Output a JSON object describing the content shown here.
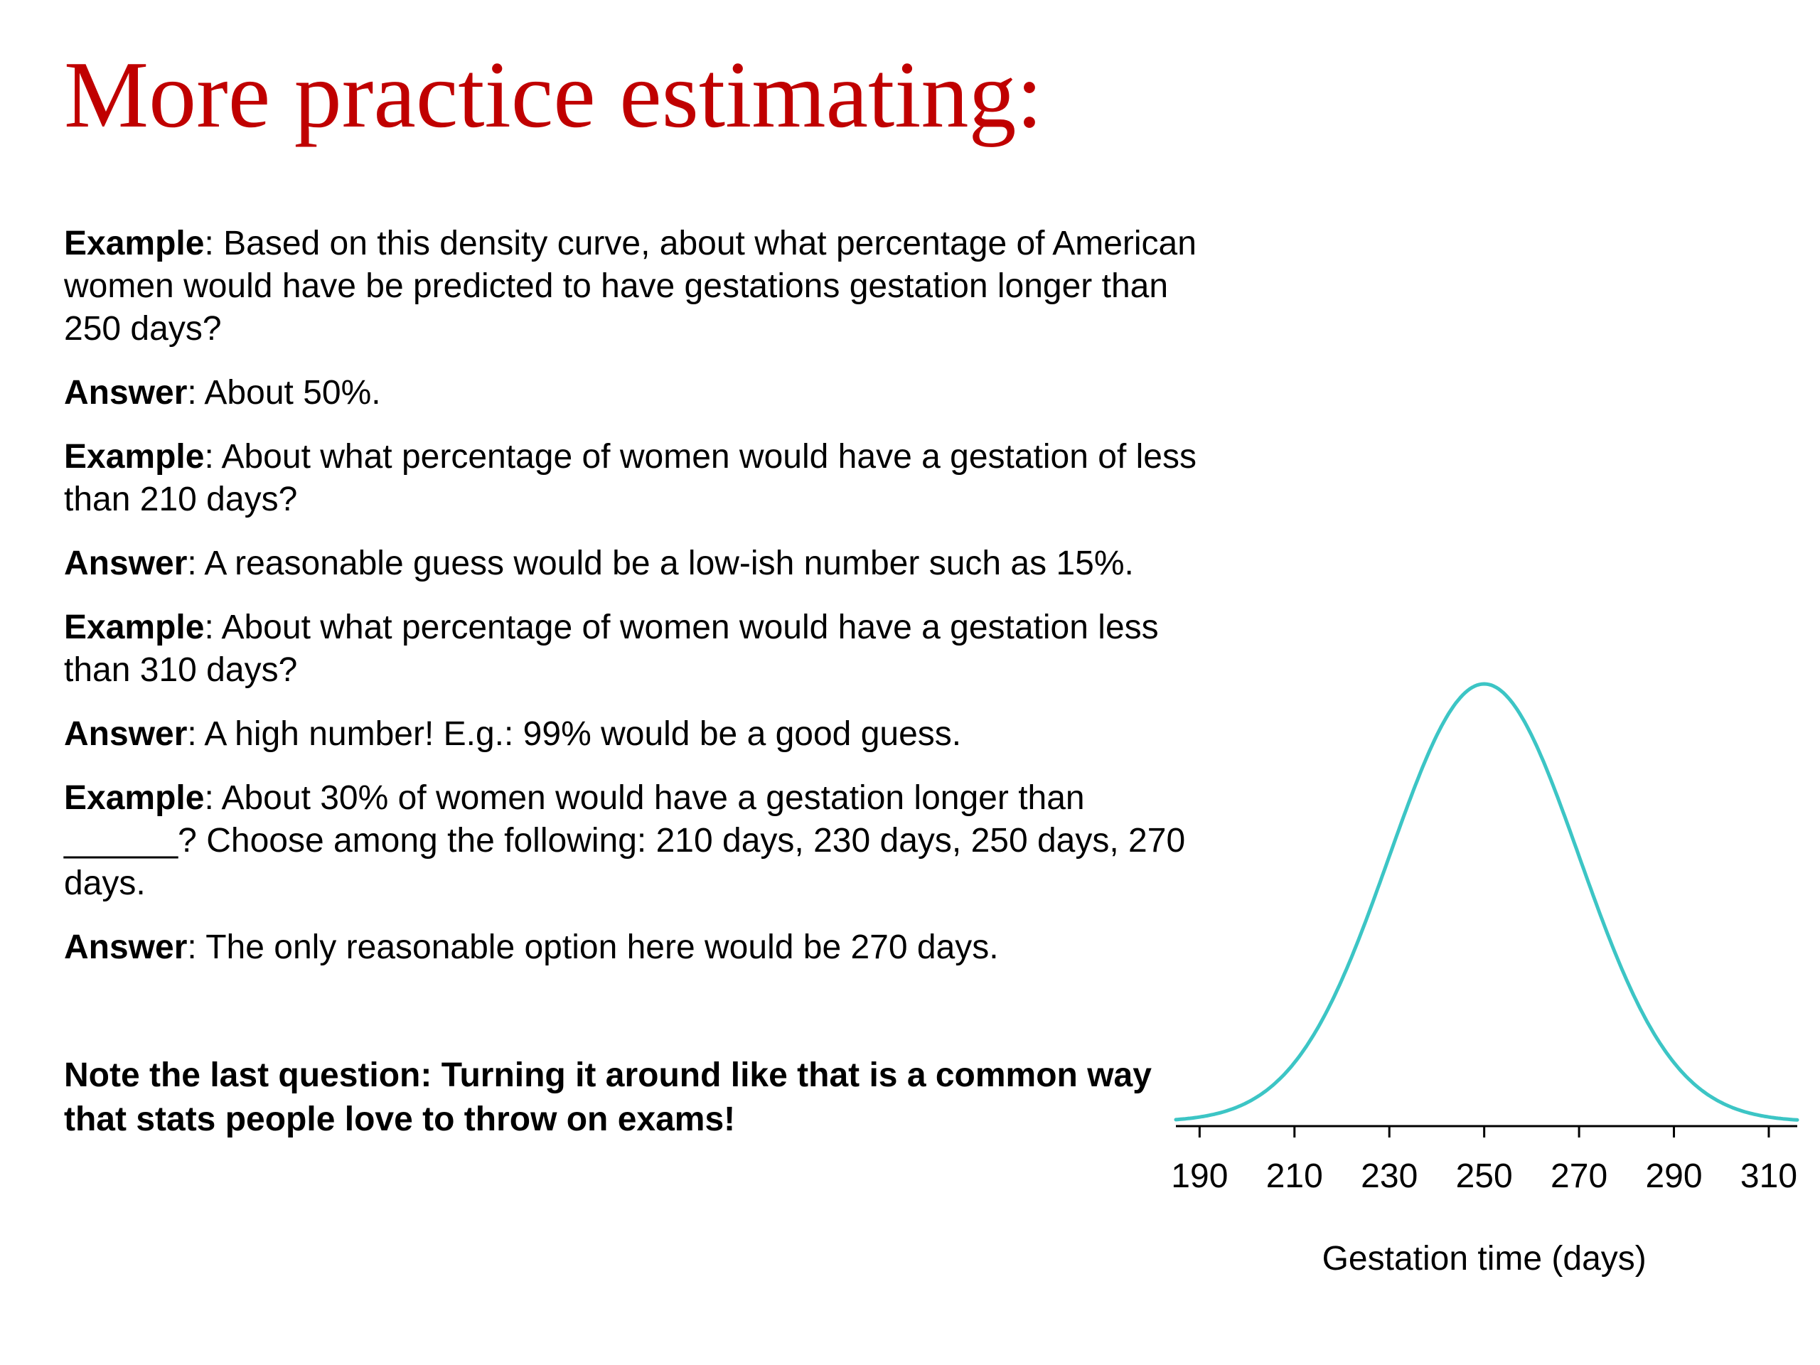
{
  "slide": {
    "title": "More practice estimating:",
    "title_color": "#c00000",
    "qa": [
      {
        "label": "Example",
        "text": ": Based on this density curve, about what percentage of American women would have be predicted to have gestations gestation longer than 250 days?"
      },
      {
        "label": "Answer",
        "text": ": About 50%."
      },
      {
        "label": "Example",
        "text": ": About what percentage of women would have a gestation of less than 210 days?"
      },
      {
        "label": "Answer",
        "text": ": A reasonable guess would be a low-ish number such as 15%."
      },
      {
        "label": "Example",
        "text": ": About what percentage of women would have a gestation less than 310 days?"
      },
      {
        "label": "Answer",
        "text": ": A high number!  E.g.: 99% would be a good guess."
      },
      {
        "label": "Example",
        "text": ": About 30% of women would have a gestation longer than ______?  Choose among the following: 210 days, 230 days, 250 days, 270 days."
      },
      {
        "label": "Answer",
        "text": ": The only reasonable option here would be 270 days."
      }
    ],
    "note": "Note the last question: Turning it around like that is a common way that stats people love to throw on exams!"
  },
  "chart_data": {
    "type": "line",
    "description": "normal density curve",
    "mean": 250,
    "sd": 20,
    "xlabel": "Gestation time (days)",
    "ticks": [
      190,
      210,
      230,
      250,
      270,
      290,
      310
    ],
    "xlim": [
      185,
      316
    ],
    "y_axis_shown": false,
    "grid": false,
    "curve_color": "#3cc5c5"
  }
}
